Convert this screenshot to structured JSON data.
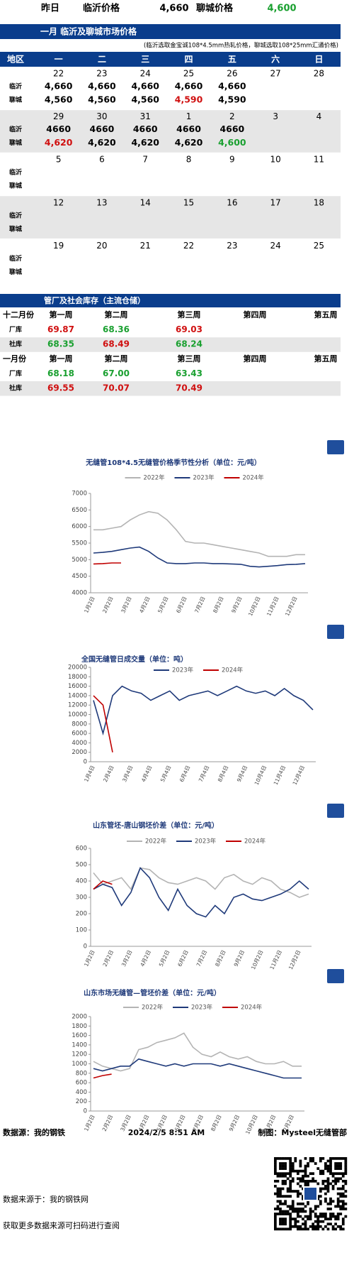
{
  "top_row": [
    "昨日",
    "临沂价格",
    "4,660",
    "聊城价格",
    {
      "text": "4,600",
      "color": "#1aa030"
    }
  ],
  "calendar": {
    "title": "一月 临沂及聊城市场价格",
    "note": "(临沂选取金宝诚108*4.5mm热轧价格，聊城选取108*25mm汇通价格)",
    "columns": [
      "地区",
      "一",
      "二",
      "三",
      "四",
      "五",
      "六",
      "日"
    ],
    "row_labels": [
      "临沂",
      "聊城"
    ],
    "weeks": [
      {
        "days": [
          22,
          23,
          24,
          25,
          26,
          27,
          28
        ],
        "linyi": [
          "4,660",
          "4,660",
          "4,660",
          "4,660",
          "4,660"
        ],
        "liaocheng": [
          "4,560",
          "4,560",
          "4,560",
          {
            "text": "4,590",
            "color": "#d01010"
          },
          "4,590"
        ]
      },
      {
        "days": [
          29,
          30,
          31,
          1,
          2,
          3,
          4
        ],
        "linyi": [
          "4660",
          "4660",
          "4660",
          "4660",
          "4660"
        ],
        "liaocheng": [
          {
            "text": "4,620",
            "color": "#d01010"
          },
          "4,620",
          "4,620",
          "4,620",
          {
            "text": "4,600",
            "color": "#1aa030"
          }
        ]
      },
      {
        "days": [
          5,
          6,
          7,
          8,
          9,
          10,
          11
        ]
      },
      {
        "days": [
          12,
          13,
          14,
          15,
          16,
          17,
          18
        ]
      },
      {
        "days": [
          19,
          20,
          21,
          22,
          23,
          24,
          25
        ]
      }
    ]
  },
  "inventory": {
    "title": "管厂及社会库存（主流仓储）",
    "rows": [
      [
        "十二月份",
        "第一周",
        "第二周",
        "第三周",
        "第四周",
        "第五周"
      ],
      [
        "厂库",
        {
          "text": "69.87",
          "color": "#d01010"
        },
        {
          "text": "68.36",
          "color": "#1aa030"
        },
        {
          "text": "69.03",
          "color": "#d01010"
        }
      ],
      [
        "社库",
        {
          "text": "68.35",
          "color": "#1aa030"
        },
        {
          "text": "68.49",
          "color": "#d01010"
        },
        {
          "text": "68.24",
          "color": "#1aa030"
        }
      ],
      [
        "一月份",
        "第一周",
        "第二周",
        "第三周",
        "第四周",
        "第五周"
      ],
      [
        "厂库",
        {
          "text": "68.18",
          "color": "#1aa030"
        },
        {
          "text": "67.00",
          "color": "#1aa030"
        },
        {
          "text": "63.43",
          "color": "#1aa030"
        }
      ],
      [
        "社库",
        {
          "text": "69.55",
          "color": "#d01010"
        },
        {
          "text": "70.07",
          "color": "#d01010"
        },
        {
          "text": "70.49",
          "color": "#d01010"
        }
      ]
    ]
  },
  "chart_data": [
    {
      "type": "line",
      "title": "无缝管108*4.5无缝管价格季节性分析（单位：元/吨）",
      "categories": [
        "1月2日",
        null,
        "2月2日",
        null,
        "3月2日",
        null,
        "4月2日",
        null,
        "5月2日",
        null,
        "6月2日",
        null,
        "7月2日",
        null,
        "8月2日",
        null,
        "9月2日",
        null,
        "10月2日",
        null,
        "11月2日",
        null,
        "12月2日",
        null
      ],
      "ylim": [
        4000,
        7000
      ],
      "yticks": [
        4000,
        4500,
        5000,
        5500,
        6000,
        6500,
        7000
      ],
      "series": [
        {
          "name": "2022年",
          "color": "#b4b4b4",
          "values": [
            5900,
            5900,
            5950,
            6000,
            6200,
            6350,
            6450,
            6400,
            6200,
            5900,
            5550,
            5500,
            5500,
            5450,
            5400,
            5350,
            5300,
            5250,
            5200,
            5100,
            5100,
            5100,
            5150,
            5150
          ]
        },
        {
          "name": "2023年",
          "color": "#1f3a7a",
          "values": [
            5200,
            5220,
            5250,
            5300,
            5350,
            5380,
            5250,
            5050,
            4900,
            4880,
            4880,
            4900,
            4900,
            4880,
            4880,
            4870,
            4860,
            4800,
            4780,
            4800,
            4820,
            4850,
            4860,
            4880
          ]
        },
        {
          "name": "2024年",
          "color": "#c00000",
          "values": [
            4870,
            4880,
            4900,
            4900,
            null,
            null,
            null,
            null,
            null,
            null,
            null,
            null,
            null,
            null,
            null,
            null,
            null,
            null,
            null,
            null,
            null,
            null,
            null,
            null
          ]
        }
      ]
    },
    {
      "type": "line",
      "title": "全国无缝管日成交量（单位：吨）",
      "categories": [
        "1月4日",
        null,
        "2月4日",
        null,
        "3月4日",
        null,
        "4月4日",
        null,
        "5月4日",
        null,
        "6月4日",
        null,
        "7月4日",
        null,
        "8月4日",
        null,
        "9月4日",
        null,
        "10月4日",
        null,
        "11月4日",
        null,
        "12月4日",
        null
      ],
      "ylim": [
        0,
        20000
      ],
      "yticks": [
        0,
        2000,
        4000,
        6000,
        8000,
        10000,
        12000,
        14000,
        16000,
        18000,
        20000
      ],
      "series": [
        {
          "name": "2023年",
          "color": "#1f3a7a",
          "values": [
            13000,
            6000,
            14000,
            16000,
            15000,
            14500,
            13000,
            14000,
            15000,
            13000,
            14000,
            14500,
            15000,
            14000,
            15000,
            16000,
            15000,
            14500,
            15000,
            14000,
            15500,
            14000,
            13000,
            11000
          ]
        },
        {
          "name": "2024年",
          "color": "#c00000",
          "values": [
            14000,
            12000,
            2000,
            null,
            null,
            null,
            null,
            null,
            null,
            null,
            null,
            null,
            null,
            null,
            null,
            null,
            null,
            null,
            null,
            null,
            null,
            null,
            null,
            null
          ]
        }
      ]
    },
    {
      "type": "line",
      "title": "山东管坯-唐山钢坯价差（单位：元/吨）",
      "categories": [
        "1月2日",
        null,
        "2月2日",
        null,
        "3月2日",
        null,
        "4月2日",
        null,
        "5月2日",
        null,
        "6月2日",
        null,
        "7月2日",
        null,
        "8月2日",
        null,
        "9月2日",
        null,
        "10月2日",
        null,
        "11月2日",
        null,
        "12月2日",
        null
      ],
      "ylim": [
        0,
        600
      ],
      "yticks": [
        0,
        100,
        200,
        300,
        400,
        500,
        600
      ],
      "series": [
        {
          "name": "2022年",
          "color": "#b4b4b4",
          "values": [
            450,
            380,
            400,
            420,
            350,
            480,
            470,
            420,
            390,
            380,
            400,
            420,
            400,
            350,
            420,
            440,
            400,
            380,
            420,
            400,
            350,
            330,
            300,
            320
          ]
        },
        {
          "name": "2023年",
          "color": "#1f3a7a",
          "values": [
            350,
            380,
            360,
            250,
            330,
            480,
            420,
            300,
            220,
            350,
            250,
            200,
            180,
            250,
            200,
            300,
            320,
            290,
            280,
            300,
            320,
            350,
            400,
            350
          ]
        },
        {
          "name": "2024年",
          "color": "#c00000",
          "values": [
            350,
            400,
            380,
            null,
            null,
            null,
            null,
            null,
            null,
            null,
            null,
            null,
            null,
            null,
            null,
            null,
            null,
            null,
            null,
            null,
            null,
            null,
            null,
            null
          ]
        }
      ]
    },
    {
      "type": "line",
      "title": "山东市场无缝管—管坯价差（单位：元/吨）",
      "categories": [
        "1月2日",
        null,
        "2月2日",
        null,
        "3月2日",
        null,
        "4月2日",
        null,
        "5月2日",
        null,
        "6月2日",
        null,
        "7月2日",
        null,
        "8月2日",
        null,
        "9月2日",
        null,
        "10月2日",
        null,
        "11月2日",
        null,
        "12月2日",
        null
      ],
      "ylim": [
        0,
        2000
      ],
      "yticks": [
        0,
        200,
        400,
        600,
        800,
        1000,
        1200,
        1400,
        1600,
        1800,
        2000
      ],
      "series": [
        {
          "name": "2022年",
          "color": "#b4b4b4",
          "values": [
            1050,
            950,
            900,
            850,
            900,
            1300,
            1350,
            1450,
            1500,
            1550,
            1650,
            1350,
            1200,
            1150,
            1250,
            1150,
            1100,
            1150,
            1050,
            1000,
            1000,
            1050,
            950,
            950
          ]
        },
        {
          "name": "2023年",
          "color": "#1f3a7a",
          "values": [
            900,
            850,
            900,
            950,
            950,
            1100,
            1050,
            1000,
            950,
            1000,
            950,
            1000,
            1000,
            1000,
            950,
            1000,
            950,
            900,
            850,
            800,
            750,
            700,
            700,
            700
          ]
        },
        {
          "name": "2024年",
          "color": "#c00000",
          "values": [
            700,
            750,
            780,
            null,
            null,
            null,
            null,
            null,
            null,
            null,
            null,
            null,
            null,
            null,
            null,
            null,
            null,
            null,
            null,
            null,
            null,
            null,
            null,
            null
          ]
        }
      ]
    }
  ],
  "footer": {
    "source": "数据源：我的钢铁",
    "timestamp": "2024/2/5 8:51 AM",
    "author": "制图：Mysteel无缝管部",
    "source_note": "数据来源于：我的钢铁网",
    "scan_note": "获取更多数据来源可扫码进行查阅"
  }
}
